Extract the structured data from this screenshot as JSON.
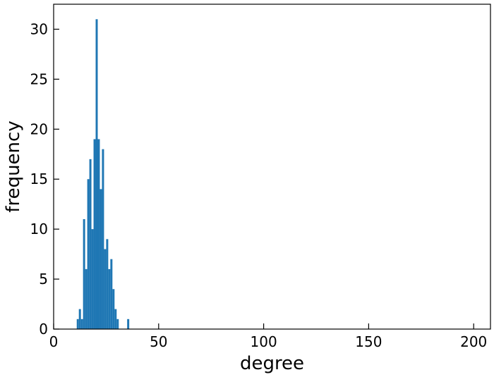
{
  "chart_data": {
    "type": "bar",
    "title": "",
    "xlabel": "degree",
    "ylabel": "frequency",
    "xlim": [
      0,
      208
    ],
    "ylim": [
      0,
      32.5
    ],
    "xticks": [
      0,
      50,
      100,
      150,
      200
    ],
    "yticks": [
      0,
      5,
      10,
      15,
      20,
      25,
      30
    ],
    "grid": false,
    "bar_color": "#1f77b4",
    "bin_width": 1,
    "bins": [
      {
        "x": 11,
        "value": 1
      },
      {
        "x": 12,
        "value": 2
      },
      {
        "x": 13,
        "value": 1
      },
      {
        "x": 14,
        "value": 11
      },
      {
        "x": 15,
        "value": 6
      },
      {
        "x": 16,
        "value": 15
      },
      {
        "x": 17,
        "value": 17
      },
      {
        "x": 18,
        "value": 10
      },
      {
        "x": 19,
        "value": 19
      },
      {
        "x": 20,
        "value": 31
      },
      {
        "x": 21,
        "value": 19
      },
      {
        "x": 22,
        "value": 14
      },
      {
        "x": 23,
        "value": 18
      },
      {
        "x": 24,
        "value": 8
      },
      {
        "x": 25,
        "value": 9
      },
      {
        "x": 26,
        "value": 6
      },
      {
        "x": 27,
        "value": 7
      },
      {
        "x": 28,
        "value": 4
      },
      {
        "x": 29,
        "value": 2
      },
      {
        "x": 30,
        "value": 1
      },
      {
        "x": 35,
        "value": 1
      }
    ]
  }
}
